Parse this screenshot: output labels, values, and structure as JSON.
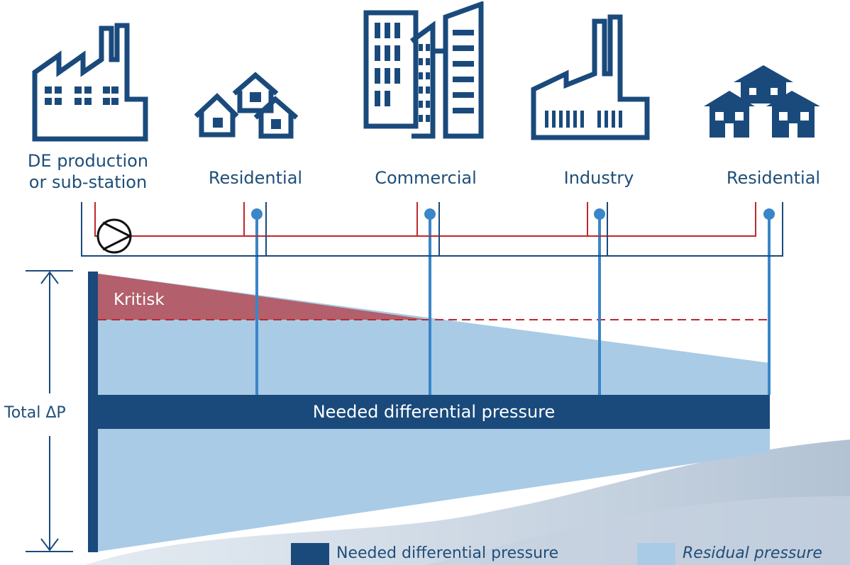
{
  "buildings": [
    {
      "id": "production",
      "icon": "factory-icon",
      "label_line1": "DE production",
      "label_line2": "or sub-station"
    },
    {
      "id": "residential-1",
      "icon": "houses-icon",
      "label": "Residential"
    },
    {
      "id": "commercial",
      "icon": "skyscraper-icon",
      "label": "Commercial"
    },
    {
      "id": "industry",
      "icon": "industry-icon",
      "label": "Industry"
    },
    {
      "id": "residential-2",
      "icon": "apartment-houses-icon",
      "label": "Residential"
    }
  ],
  "diagram": {
    "critical_label": "Kritisk",
    "needed_label": "Needed differential pressure",
    "total_label": "Total ΔP",
    "pump_icon": "pump-icon"
  },
  "legend": {
    "needed": "Needed differential pressure",
    "residual": "Residual pressure"
  },
  "colors": {
    "navy": "#1a4a7c",
    "light_blue": "#a9cbe6",
    "mid_blue": "#3a86c8",
    "critical": "#b3606c",
    "supply_red": "#c0272d",
    "text": "#1f4e79"
  }
}
